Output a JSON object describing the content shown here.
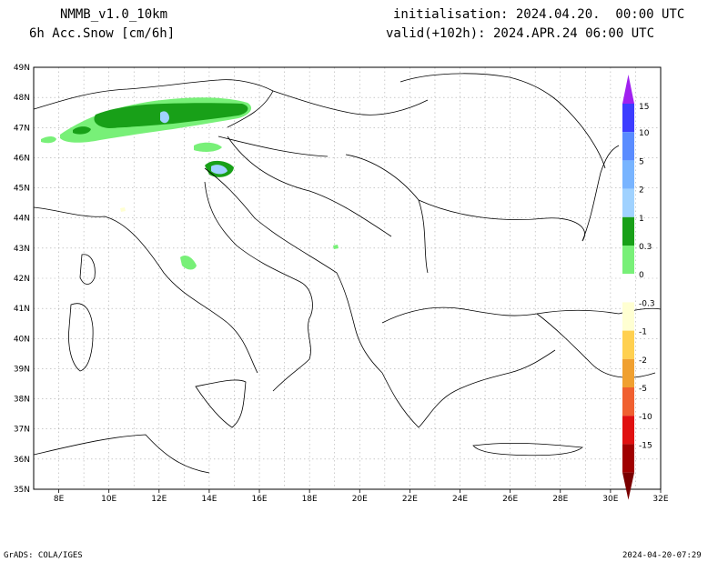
{
  "header": {
    "model": "NMMB_v1.0_10km",
    "variable": "6h Acc.Snow [cm/6h]",
    "init": "initialisation: 2024.04.20.  00:00 UTC",
    "valid": "valid(+102h): 2024.APR.24 06:00 UTC"
  },
  "footer": {
    "left": "GrADS: COLA/IGES",
    "right": "2024-04-20-07:29"
  },
  "axes": {
    "lon_labels": [
      "8E",
      "10E",
      "12E",
      "14E",
      "16E",
      "18E",
      "20E",
      "22E",
      "24E",
      "26E",
      "28E",
      "30E",
      "32E"
    ],
    "lat_labels": [
      "49N",
      "48N",
      "47N",
      "46N",
      "45N",
      "44N",
      "43N",
      "42N",
      "41N",
      "40N",
      "39N",
      "38N",
      "37N",
      "36N",
      "35N"
    ]
  },
  "colorbar": {
    "labels": [
      "15",
      "10",
      "5",
      "2",
      "1",
      "0.3",
      "0",
      "-0.3",
      "-1",
      "-2",
      "-5",
      "-10",
      "-15"
    ],
    "colors": [
      "#3c3cff",
      "#5a8cff",
      "#78b4ff",
      "#a0d2ff",
      "#18a018",
      "#78f078",
      "#ffffff",
      "#ffffd2",
      "#ffd050",
      "#f0a030",
      "#f06030",
      "#e01010",
      "#a00000"
    ],
    "top_arrow_color": "#a020f0",
    "bottom_arrow_color": "#7a0000"
  },
  "colors": {
    "snow_light": "#78f078",
    "snow_mid": "#18a018",
    "snow_blue": "#a0d2ff",
    "border": "#000000",
    "grid": "#aaaaaa"
  }
}
